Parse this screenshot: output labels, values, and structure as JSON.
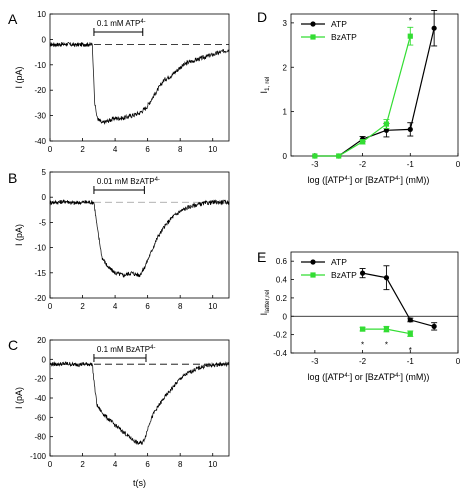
{
  "chart_data": [
    {
      "panel": "A",
      "type": "line",
      "ylabel": "I (pA)",
      "xlim": [
        0,
        11
      ],
      "ylim": [
        -40,
        10
      ],
      "xticks": [
        0,
        2,
        4,
        6,
        8,
        10
      ],
      "yticks": [
        10,
        0,
        -10,
        -20,
        -30,
        -40
      ],
      "baseline": -2,
      "annotation": "0.1 mM ATP",
      "annotation_sup": "4-",
      "bar_x": [
        2.7,
        5.7
      ],
      "trace": {
        "x": [
          0,
          0.5,
          1,
          1.5,
          2,
          2.6,
          2.75,
          2.9,
          3.2,
          3.6,
          4,
          4.5,
          5,
          5.5,
          5.9,
          6.2,
          6.6,
          7,
          7.5,
          8,
          8.5,
          9,
          9.5,
          10,
          10.5,
          11
        ],
        "y": [
          -2,
          -2,
          -1.8,
          -2.2,
          -2,
          -2,
          -25,
          -31,
          -33,
          -32,
          -31,
          -31,
          -30,
          -29,
          -27,
          -24,
          -20,
          -16,
          -14,
          -11,
          -9,
          -8,
          -7,
          -6,
          -5,
          -4
        ]
      }
    },
    {
      "panel": "B",
      "type": "line",
      "ylabel": "I (pA)",
      "xlim": [
        0,
        11
      ],
      "ylim": [
        -20,
        5
      ],
      "xticks": [
        0,
        2,
        4,
        6,
        8,
        10
      ],
      "yticks": [
        5,
        0,
        -5,
        -10,
        -15,
        -20
      ],
      "baseline": -1,
      "annotation": "0.01 mM BzATP",
      "annotation_sup": "4-",
      "bar_x": [
        2.7,
        5.8
      ],
      "trace": {
        "x": [
          0,
          0.5,
          1,
          1.5,
          2,
          2.7,
          2.9,
          3.2,
          3.6,
          4,
          4.5,
          5,
          5.5,
          5.8,
          6.2,
          6.6,
          7,
          7.5,
          8,
          8.5,
          9,
          9.5,
          10,
          10.5,
          11
        ],
        "y": [
          -1,
          -1,
          -0.8,
          -1.2,
          -1,
          -1,
          -6,
          -12,
          -14,
          -15,
          -15.5,
          -15,
          -15.5,
          -14,
          -11,
          -8,
          -6,
          -4,
          -2.8,
          -2,
          -1.5,
          -1.2,
          -1,
          -1,
          -1
        ]
      }
    },
    {
      "panel": "C",
      "type": "line",
      "xlabel": "t(s)",
      "ylabel": "I (pA)",
      "xlim": [
        0,
        11
      ],
      "ylim": [
        -100,
        20
      ],
      "xticks": [
        0,
        2,
        4,
        6,
        8,
        10
      ],
      "yticks": [
        20,
        0,
        -20,
        -40,
        -60,
        -80,
        -100
      ],
      "baseline": -5,
      "annotation": "0.1 mM BzATP",
      "annotation_sup": "4-",
      "bar_x": [
        2.7,
        5.9
      ],
      "trace": {
        "x": [
          0,
          0.5,
          1,
          1.5,
          2,
          2.6,
          2.75,
          2.9,
          3.2,
          3.6,
          4,
          4.5,
          5,
          5.4,
          5.7,
          5.9,
          6.1,
          6.4,
          6.8,
          7.2,
          7.6,
          8,
          8.5,
          9,
          9.5,
          10,
          10.5,
          11
        ],
        "y": [
          -5,
          -5,
          -4.5,
          -5.5,
          -5,
          -5,
          -30,
          -48,
          -55,
          -62,
          -68,
          -75,
          -82,
          -87,
          -86,
          -78,
          -66,
          -55,
          -45,
          -36,
          -28,
          -20,
          -14,
          -10,
          -7,
          -6,
          -5,
          -5
        ]
      }
    },
    {
      "panel": "D",
      "type": "line",
      "xlabel": "log ([ATP",
      "xlabel_sup1": "4-",
      "xlabel_mid": "] or [BzATP",
      "xlabel_sup2": "4-",
      "xlabel_end": "] (mM))",
      "ylabel": "I",
      "ylabel_sub": "1, rel",
      "xlim": [
        -3.5,
        0
      ],
      "ylim": [
        0,
        3.2
      ],
      "xticks": [
        -3,
        -2,
        -1,
        0
      ],
      "yticks": [
        0,
        1,
        2,
        3
      ],
      "legend_position": "top-left",
      "series": [
        {
          "name": "ATP",
          "color": "#000000",
          "marker": "circle",
          "x": [
            -3,
            -2.5,
            -2,
            -1.5,
            -1,
            -0.5
          ],
          "y": [
            0,
            0,
            0.38,
            0.58,
            0.6,
            2.88
          ],
          "err": [
            0,
            0,
            0.06,
            0.15,
            0.15,
            0.4
          ]
        },
        {
          "name": "BzATP",
          "color": "#33dd33",
          "marker": "square",
          "x": [
            -3,
            -2.5,
            -2,
            -1.5,
            -1
          ],
          "y": [
            0,
            0,
            0.32,
            0.72,
            2.7
          ],
          "err": [
            0,
            0,
            0.05,
            0.1,
            0.2
          ]
        }
      ],
      "significance": [
        {
          "x": -1,
          "y": 3.05,
          "text": "*"
        }
      ]
    },
    {
      "panel": "E",
      "type": "line",
      "xlabel": "log ([ATP",
      "xlabel_sup1": "4-",
      "xlabel_mid": "] or [BzATP",
      "xlabel_sup2": "4-",
      "xlabel_end": "] (mM))",
      "ylabel": "I",
      "ylabel_sub": "latter,rel",
      "xlim": [
        -3.5,
        0
      ],
      "ylim": [
        -0.4,
        0.7
      ],
      "xticks": [
        -3,
        -2,
        -1,
        0
      ],
      "yticks": [
        0.6,
        0.4,
        0.2,
        0.0,
        -0.2,
        -0.4
      ],
      "legend_position": "top-left",
      "zero_line": true,
      "series": [
        {
          "name": "ATP",
          "color": "#000000",
          "marker": "circle",
          "x": [
            -2,
            -1.5,
            -1,
            -0.5
          ],
          "y": [
            0.47,
            0.42,
            -0.04,
            -0.11
          ],
          "err": [
            0.05,
            0.13,
            0.02,
            0.04
          ]
        },
        {
          "name": "BzATP",
          "color": "#33dd33",
          "marker": "square",
          "x": [
            -2,
            -1.5,
            -1
          ],
          "y": [
            -0.14,
            -0.14,
            -0.19
          ],
          "err": [
            0.02,
            0.03,
            0.03
          ]
        }
      ],
      "significance": [
        {
          "x": -2,
          "y": -0.31,
          "text": "*"
        },
        {
          "x": -1.5,
          "y": -0.31,
          "text": "*"
        },
        {
          "x": -1,
          "y": -0.37,
          "text": "*"
        }
      ]
    }
  ]
}
